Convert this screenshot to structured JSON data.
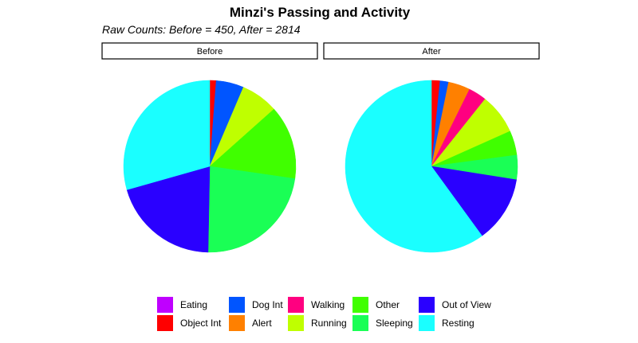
{
  "chart_data": {
    "type": "pie",
    "title": "Minzi's Passing and Activity",
    "subtitle": "Raw Counts: Before = 450, After = 2814",
    "categories": [
      "Eating",
      "Object Int",
      "Dog Int",
      "Alert",
      "Walking",
      "Running",
      "Other",
      "Sleeping",
      "Out of View",
      "Resting"
    ],
    "colors": {
      "Eating": "#BF00FF",
      "Object Int": "#FF0000",
      "Dog Int": "#0055FF",
      "Alert": "#FF8000",
      "Walking": "#FF0080",
      "Running": "#BFFF00",
      "Other": "#40FF00",
      "Sleeping": "#1AFF55",
      "Out of View": "#2A00FF",
      "Resting": "#1AFFFF"
    },
    "panels": [
      {
        "name": "Before",
        "slices": [
          {
            "category": "Object Int",
            "value": 0.012
          },
          {
            "category": "Dog Int",
            "value": 0.052
          },
          {
            "category": "Running",
            "value": 0.07
          },
          {
            "category": "Other",
            "value": 0.139
          },
          {
            "category": "Sleeping",
            "value": 0.23
          },
          {
            "category": "Out of View",
            "value": 0.203
          },
          {
            "category": "Resting",
            "value": 0.294
          }
        ]
      },
      {
        "name": "After",
        "slices": [
          {
            "category": "Object Int",
            "value": 0.016
          },
          {
            "category": "Dog Int",
            "value": 0.016
          },
          {
            "category": "Alert",
            "value": 0.041
          },
          {
            "category": "Walking",
            "value": 0.034
          },
          {
            "category": "Running",
            "value": 0.076
          },
          {
            "category": "Other",
            "value": 0.046
          },
          {
            "category": "Sleeping",
            "value": 0.046
          },
          {
            "category": "Out of View",
            "value": 0.125
          },
          {
            "category": "Resting",
            "value": 0.6
          }
        ]
      }
    ],
    "legend": {
      "position": "bottom",
      "columns": [
        [
          "Eating",
          "Object Int"
        ],
        [
          "Dog Int",
          "Alert"
        ],
        [
          "Walking",
          "Running"
        ],
        [
          "Other",
          "Sleeping"
        ],
        [
          "Out of View",
          "Resting"
        ]
      ]
    }
  }
}
